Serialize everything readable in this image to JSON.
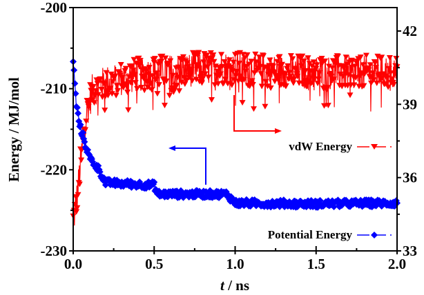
{
  "chart_data": {
    "type": "line",
    "title": "",
    "xlabel_italic": "t",
    "xlabel_rest": " / ns",
    "ylabel_left": "Energy / MJ/mol",
    "ylabel_right": "",
    "xlim": [
      0.0,
      2.0
    ],
    "ylim_left": [
      -230,
      -200
    ],
    "ylim_right": [
      33,
      42.96
    ],
    "x_ticks": [
      0.0,
      0.5,
      1.0,
      1.5,
      2.0
    ],
    "x_tick_labels": [
      "0.0",
      "0.5",
      "1.0",
      "1.5",
      "2.0"
    ],
    "y_left_ticks": [
      -230,
      -220,
      -210,
      -200
    ],
    "y_left_tick_labels": [
      "-230",
      "-220",
      "-210",
      "-200"
    ],
    "y_right_ticks": [
      33,
      36,
      39,
      42
    ],
    "y_right_tick_labels": [
      "33",
      "36",
      "39",
      "42"
    ],
    "grid": false,
    "series": [
      {
        "name": "vdW Energy",
        "axis": "right",
        "color": "#ff0000",
        "marker": "triangle-down",
        "trend": [
          {
            "x": 0.0,
            "y": 34.2
          },
          {
            "x": 0.02,
            "y": 35.0
          },
          {
            "x": 0.05,
            "y": 36.8
          },
          {
            "x": 0.08,
            "y": 38.6
          },
          {
            "x": 0.12,
            "y": 39.6
          },
          {
            "x": 0.2,
            "y": 39.9
          },
          {
            "x": 0.4,
            "y": 40.2
          },
          {
            "x": 0.6,
            "y": 40.35
          },
          {
            "x": 0.9,
            "y": 40.5
          },
          {
            "x": 1.2,
            "y": 40.35
          },
          {
            "x": 1.5,
            "y": 40.3
          },
          {
            "x": 1.8,
            "y": 40.3
          },
          {
            "x": 2.0,
            "y": 40.35
          }
        ],
        "noise_amplitude": 0.7
      },
      {
        "name": "Potential Energy",
        "axis": "left",
        "color": "#0000ff",
        "marker": "diamond",
        "trend": [
          {
            "x": 0.0,
            "y": -206.5
          },
          {
            "x": 0.01,
            "y": -209.5
          },
          {
            "x": 0.02,
            "y": -212.0
          },
          {
            "x": 0.04,
            "y": -214.5
          },
          {
            "x": 0.07,
            "y": -216.5
          },
          {
            "x": 0.1,
            "y": -218.5
          },
          {
            "x": 0.16,
            "y": -220.0
          },
          {
            "x": 0.2,
            "y": -221.6
          },
          {
            "x": 0.5,
            "y": -221.9
          },
          {
            "x": 0.52,
            "y": -223.0
          },
          {
            "x": 0.95,
            "y": -223.0
          },
          {
            "x": 1.0,
            "y": -224.1
          },
          {
            "x": 1.5,
            "y": -224.2
          },
          {
            "x": 2.0,
            "y": -224.1
          }
        ],
        "noise_amplitude": 0.45
      }
    ],
    "legend": {
      "placement": "inside-right",
      "entries": [
        "vdW Energy",
        "Potential Energy"
      ]
    },
    "annotations": [
      {
        "type": "arrow",
        "color": "#ff0000",
        "direction": "right",
        "meaning": "vdW Energy on right axis",
        "anchor_x": 0.97
      },
      {
        "type": "arrow",
        "color": "#0000ff",
        "direction": "left",
        "meaning": "Potential Energy on left axis",
        "anchor_x": 0.5
      }
    ]
  }
}
